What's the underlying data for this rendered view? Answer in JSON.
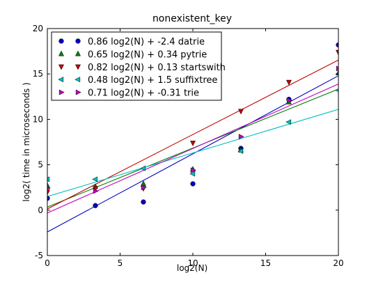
{
  "chart_data": {
    "type": "scatter",
    "title": "nonexistent_key",
    "xlabel": "log2(N)",
    "ylabel": "log2( time in microseconds )",
    "xlim": [
      0,
      20
    ],
    "ylim": [
      -5,
      20
    ],
    "xticks": [
      "0",
      "5",
      "10",
      "15",
      "20"
    ],
    "yticks": [
      "-5",
      "0",
      "5",
      "10",
      "15",
      "20"
    ],
    "grid": false,
    "legend_position": "top-left",
    "series": [
      {
        "name": "0.86 log2(N) + -2.4 datrie",
        "color": "#0000bf",
        "marker": "circle",
        "fit": {
          "slope": 0.86,
          "intercept": -2.4
        },
        "points": [
          [
            0,
            1.3
          ],
          [
            3.3,
            0.5
          ],
          [
            6.6,
            0.9
          ],
          [
            10,
            2.9
          ],
          [
            13.3,
            6.8
          ],
          [
            16.6,
            12.2
          ],
          [
            20,
            18.2
          ]
        ]
      },
      {
        "name": "0.65 log2(N) + 0.34 pytrie",
        "color": "#007f00",
        "marker": "triangle-up",
        "fit": {
          "slope": 0.65,
          "intercept": 0.34
        },
        "points": [
          [
            0,
            2.7
          ],
          [
            3.3,
            2.6
          ],
          [
            6.6,
            2.9
          ],
          [
            10,
            4.5
          ],
          [
            13.3,
            6.6
          ],
          [
            16.6,
            11.9
          ],
          [
            20,
            15.1
          ]
        ]
      },
      {
        "name": "0.82 log2(N) + 0.13 startswith",
        "color": "#bf0000",
        "marker": "triangle-down",
        "fit": {
          "slope": 0.82,
          "intercept": 0.13
        },
        "points": [
          [
            0,
            2.0
          ],
          [
            3.3,
            2.4
          ],
          [
            6.6,
            2.4
          ],
          [
            10,
            7.4
          ],
          [
            13.3,
            10.9
          ],
          [
            16.6,
            14.1
          ],
          [
            20,
            17.4
          ]
        ]
      },
      {
        "name": "0.48 log2(N) + 1.5 suffixtree",
        "color": "#00bfbf",
        "marker": "triangle-left",
        "fit": {
          "slope": 0.48,
          "intercept": 1.5
        },
        "points": [
          [
            0,
            3.4
          ],
          [
            3.3,
            3.4
          ],
          [
            6.6,
            4.6
          ],
          [
            10,
            4.0
          ],
          [
            13.3,
            6.5
          ],
          [
            16.6,
            9.7
          ],
          [
            20,
            13.2
          ]
        ]
      },
      {
        "name": "0.71 log2(N) + -0.31 trie",
        "color": "#bf00bf",
        "marker": "triangle-right",
        "fit": {
          "slope": 0.71,
          "intercept": -0.31
        },
        "points": [
          [
            0,
            2.4
          ],
          [
            3.3,
            2.1
          ],
          [
            6.6,
            2.5
          ],
          [
            10,
            4.4
          ],
          [
            13.3,
            8.1
          ],
          [
            16.6,
            12.1
          ],
          [
            20,
            15.6
          ]
        ]
      }
    ]
  }
}
